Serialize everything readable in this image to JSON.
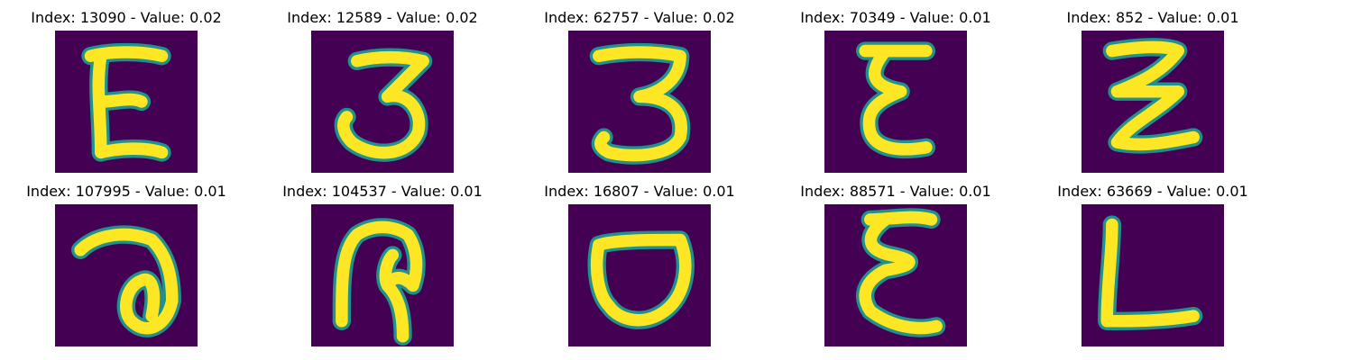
{
  "figure": {
    "background_color": "#440154",
    "stroke_core_color": "#fde725",
    "stroke_edge_color": "#21918c",
    "panels": [
      {
        "title": "Index: 13090 - Value: 0.02",
        "glyph": "E"
      },
      {
        "title": "Index: 12589 - Value: 0.02",
        "glyph": "3"
      },
      {
        "title": "Index: 62757 - Value: 0.02",
        "glyph": "3"
      },
      {
        "title": "Index: 70349 - Value: 0.01",
        "glyph": "Ɛ"
      },
      {
        "title": "Index: 852 - Value: 0.01",
        "glyph": "Ƶ"
      },
      {
        "title": "Index: 107995 - Value: 0.01",
        "glyph": "ə"
      },
      {
        "title": "Index: 104537 - Value: 0.01",
        "glyph": "ᑭ"
      },
      {
        "title": "Index: 16807 - Value: 0.01",
        "glyph": "O"
      },
      {
        "title": "Index: 88571 - Value: 0.01",
        "glyph": "Ɛ"
      },
      {
        "title": "Index: 63669 - Value: 0.01",
        "glyph": "L"
      }
    ]
  }
}
